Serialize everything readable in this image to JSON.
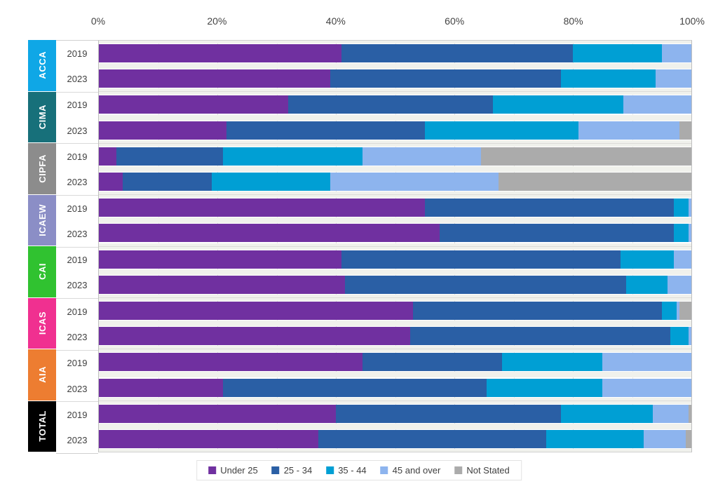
{
  "chart_data": {
    "type": "bar",
    "orientation": "horizontal_stacked",
    "title": "",
    "unit": "percent",
    "x_axis": {
      "range": [
        0,
        100
      ],
      "tick_step": 20,
      "minor_grid_step": 10,
      "ticks": [
        "0%",
        "20%",
        "40%",
        "60%",
        "80%",
        "100%"
      ]
    },
    "legend_position": "bottom",
    "series": [
      {
        "name": "Under 25",
        "color": "#7030A0"
      },
      {
        "name": "25 - 34",
        "color": "#2A5FA5"
      },
      {
        "name": "35 - 44",
        "color": "#009FD4"
      },
      {
        "name": "45 and over",
        "color": "#8DB4EE"
      },
      {
        "name": "Not Stated",
        "color": "#ABABAB"
      }
    ],
    "groups": [
      {
        "label": "ACCA",
        "color": "#0FA7E6",
        "rows": [
          {
            "year": "2019",
            "values": [
              41,
              39,
              15,
              5,
              0
            ]
          },
          {
            "year": "2023",
            "values": [
              39,
              39,
              16,
              6,
              0
            ]
          }
        ]
      },
      {
        "label": "CIMA",
        "color": "#17707A",
        "rows": [
          {
            "year": "2019",
            "values": [
              32,
              34.5,
              22,
              11.5,
              0
            ]
          },
          {
            "year": "2023",
            "values": [
              21.5,
              33.5,
              26,
              17,
              2
            ]
          }
        ]
      },
      {
        "label": "CIPFA",
        "color": "#8C8C8C",
        "rows": [
          {
            "year": "2019",
            "values": [
              3,
              18,
              23.5,
              20,
              35.5
            ]
          },
          {
            "year": "2023",
            "values": [
              4,
              15,
              20,
              28.5,
              32.5
            ]
          }
        ]
      },
      {
        "label": "ICAEW",
        "color": "#8B8EC6",
        "rows": [
          {
            "year": "2019",
            "values": [
              55,
              42,
              2.5,
              0.5,
              0
            ]
          },
          {
            "year": "2023",
            "values": [
              57.5,
              39.5,
              2.5,
              0.5,
              0
            ]
          }
        ]
      },
      {
        "label": "CAI",
        "color": "#30C230",
        "rows": [
          {
            "year": "2019",
            "values": [
              41,
              47,
              9,
              3,
              0
            ]
          },
          {
            "year": "2023",
            "values": [
              41.5,
              47.5,
              7,
              4,
              0
            ]
          }
        ]
      },
      {
        "label": "ICAS",
        "color": "#F03090",
        "rows": [
          {
            "year": "2019",
            "values": [
              53,
              42,
              2.5,
              0.5,
              2
            ]
          },
          {
            "year": "2023",
            "values": [
              52.5,
              44,
              3,
              0.5,
              0
            ]
          }
        ]
      },
      {
        "label": "AIA",
        "color": "#ED7D31",
        "rows": [
          {
            "year": "2019",
            "values": [
              44.5,
              23.5,
              17,
              15,
              0
            ]
          },
          {
            "year": "2023",
            "values": [
              21,
              44.5,
              19.5,
              15,
              0
            ]
          }
        ]
      },
      {
        "label": "TOTAL",
        "color": "#000000",
        "rows": [
          {
            "year": "2019",
            "values": [
              40,
              38,
              15.5,
              6,
              0.5
            ]
          },
          {
            "year": "2023",
            "values": [
              37,
              38.5,
              16.5,
              7,
              1
            ]
          }
        ]
      }
    ]
  }
}
